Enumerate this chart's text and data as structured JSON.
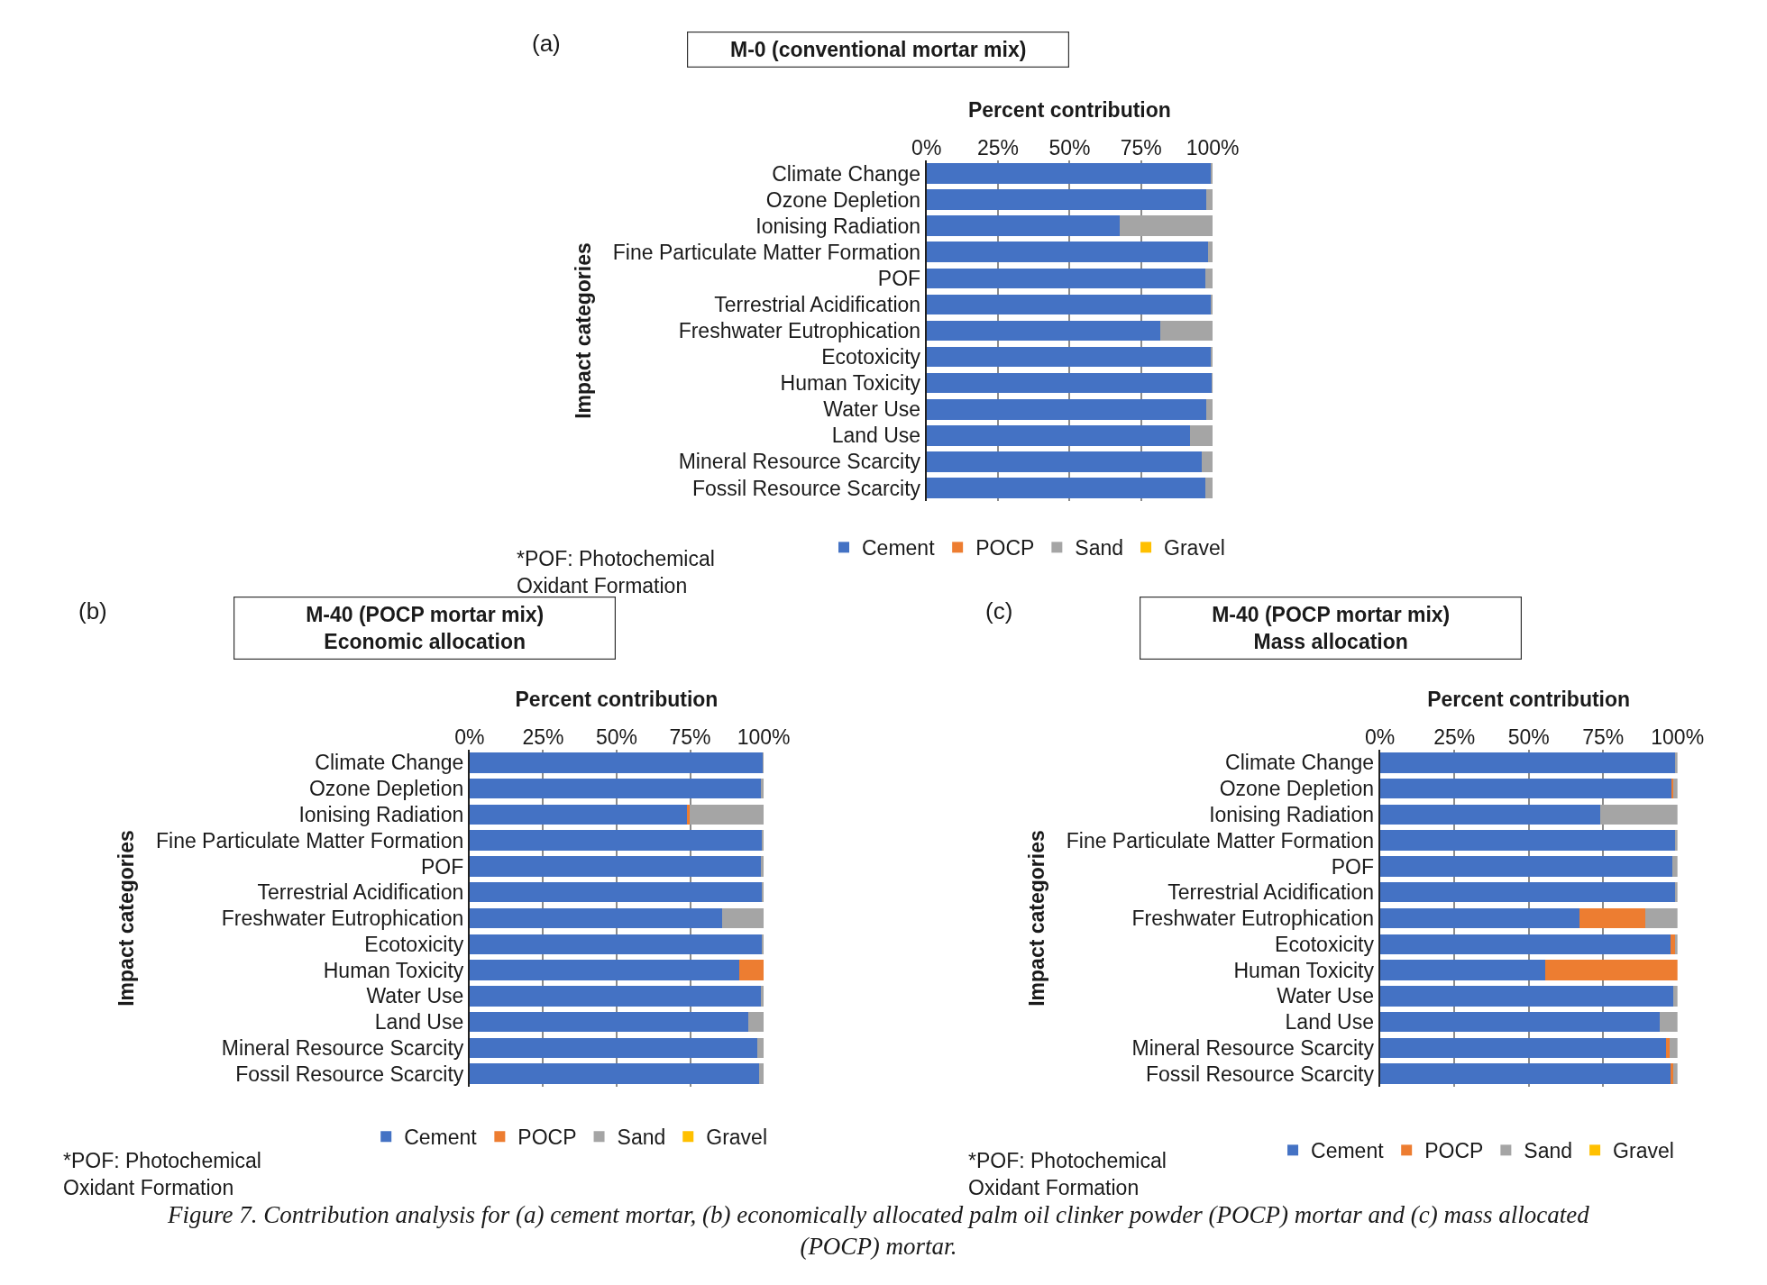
{
  "chart_data": [
    {
      "type": "bar",
      "orientation": "horizontal",
      "stacked": true,
      "title": "M-0 (conventional mortar mix)",
      "xlabel": "Percent contribution",
      "ylabel": "Impact categories",
      "xlim": [
        0,
        100
      ],
      "xticks": [
        {
          "value": 0,
          "label": "0%"
        },
        {
          "value": 25,
          "label": "25%"
        },
        {
          "value": 50,
          "label": "50%"
        },
        {
          "value": 75,
          "label": "75%"
        },
        {
          "value": 100,
          "label": "100%"
        }
      ],
      "grid": "x",
      "legend": "bottom",
      "annotations": [
        "(a)",
        "*POF: Photochemical\nOxidant Formation"
      ],
      "categories": [
        "Climate Change",
        "Ozone Depletion",
        "Ionising Radiation",
        "Fine Particulate Matter Formation",
        "POF",
        "Terrestrial Acidification",
        "Freshwater Eutrophication",
        "Ecotoxicity",
        "Human Toxicity",
        "Water Use",
        "Land Use",
        "Mineral Resource Scarcity",
        "Fossil Resource Scarcity"
      ],
      "series": [
        {
          "name": "Cement",
          "color": "#4472c4",
          "values": [
            99.2,
            97.9,
            67.6,
            98.5,
            97.4,
            99.2,
            81.7,
            99.2,
            99.7,
            97.9,
            92.2,
            96.3,
            97.4
          ]
        },
        {
          "name": "POCP",
          "color": "#ed7d31",
          "values": [
            0,
            0,
            0,
            0,
            0,
            0,
            0,
            0,
            0,
            0,
            0,
            0,
            0
          ]
        },
        {
          "name": "Sand",
          "color": "#a5a5a5",
          "values": [
            0.8,
            2.1,
            32.4,
            1.5,
            2.6,
            0.8,
            18.3,
            0.8,
            0.3,
            2.1,
            7.8,
            3.7,
            2.6
          ]
        },
        {
          "name": "Gravel",
          "color": "#ffc000",
          "values": [
            0,
            0,
            0,
            0,
            0,
            0,
            0,
            0,
            0,
            0,
            0,
            0,
            0
          ]
        }
      ]
    },
    {
      "type": "bar",
      "orientation": "horizontal",
      "stacked": true,
      "title": "M-40 (POCP mortar mix)\nEconomic allocation",
      "xlabel": "Percent contribution",
      "ylabel": "Impact categories",
      "xlim": [
        0,
        100
      ],
      "xticks": [
        {
          "value": 0,
          "label": "0%"
        },
        {
          "value": 25,
          "label": "25%"
        },
        {
          "value": 50,
          "label": "50%"
        },
        {
          "value": 75,
          "label": "75%"
        },
        {
          "value": 100,
          "label": "100%"
        }
      ],
      "grid": "x",
      "legend": "bottom",
      "annotations": [
        "(b)",
        "*POF: Photochemical\nOxidant Formation"
      ],
      "categories": [
        "Climate Change",
        "Ozone Depletion",
        "Ionising Radiation",
        "Fine Particulate Matter Formation",
        "POF",
        "Terrestrial Acidification",
        "Freshwater Eutrophication",
        "Ecotoxicity",
        "Human Toxicity",
        "Water Use",
        "Land Use",
        "Mineral Resource Scarcity",
        "Fossil Resource Scarcity"
      ],
      "series": [
        {
          "name": "Cement",
          "color": "#4472c4",
          "values": [
            99.8,
            99.0,
            73.9,
            99.5,
            99.0,
            99.5,
            86.0,
            99.5,
            91.7,
            99.0,
            94.7,
            97.7,
            98.3
          ]
        },
        {
          "name": "POCP",
          "color": "#ed7d31",
          "values": [
            0,
            0,
            0.8,
            0,
            0,
            0,
            0,
            0,
            8.3,
            0,
            0,
            0,
            0
          ]
        },
        {
          "name": "Sand",
          "color": "#a5a5a5",
          "values": [
            0.2,
            1.0,
            25.3,
            0.5,
            1.0,
            0.5,
            14.0,
            0.5,
            0,
            1.0,
            5.3,
            2.3,
            1.7
          ]
        },
        {
          "name": "Gravel",
          "color": "#ffc000",
          "values": [
            0,
            0,
            0,
            0,
            0,
            0,
            0,
            0,
            0,
            0,
            0,
            0,
            0
          ]
        }
      ]
    },
    {
      "type": "bar",
      "orientation": "horizontal",
      "stacked": true,
      "title": "M-40 (POCP mortar mix)\nMass allocation",
      "xlabel": "Percent contribution",
      "ylabel": "Impact categories",
      "xlim": [
        0,
        100
      ],
      "xticks": [
        {
          "value": 0,
          "label": "0%"
        },
        {
          "value": 25,
          "label": "25%"
        },
        {
          "value": 50,
          "label": "50%"
        },
        {
          "value": 75,
          "label": "75%"
        },
        {
          "value": 100,
          "label": "100%"
        }
      ],
      "grid": "x",
      "legend": "bottom",
      "annotations": [
        "(c)",
        "*POF: Photochemical\nOxidant Formation",
        "Figure 7. Contribution analysis for (a) cement mortar, (b) economically allocated palm oil clinker powder (POCP) mortar and (c) mass allocated\n(POCP) mortar."
      ],
      "categories": [
        "Climate Change",
        "Ozone Depletion",
        "Ionising Radiation",
        "Fine Particulate Matter Formation",
        "POF",
        "Terrestrial Acidification",
        "Freshwater Eutrophication",
        "Ecotoxicity",
        "Human Toxicity",
        "Water Use",
        "Land Use",
        "Mineral Resource Scarcity",
        "Fossil Resource Scarcity"
      ],
      "series": [
        {
          "name": "Cement",
          "color": "#4472c4",
          "values": [
            99.2,
            98.0,
            74.1,
            99.2,
            98.2,
            99.2,
            67.2,
            97.7,
            55.5,
            98.7,
            94.0,
            96.3,
            97.7
          ]
        },
        {
          "name": "POCP",
          "color": "#ed7d31",
          "values": [
            0,
            0.5,
            0,
            0,
            0,
            0,
            21.9,
            1.5,
            44.5,
            0,
            0,
            1.2,
            0.8
          ]
        },
        {
          "name": "Sand",
          "color": "#a5a5a5",
          "values": [
            0.8,
            1.5,
            25.9,
            0.8,
            1.8,
            0.8,
            10.9,
            0.8,
            0,
            1.3,
            6.0,
            2.5,
            1.5
          ]
        },
        {
          "name": "Gravel",
          "color": "#ffc000",
          "values": [
            0,
            0,
            0,
            0,
            0,
            0,
            0,
            0,
            0,
            0,
            0,
            0,
            0
          ]
        }
      ]
    }
  ]
}
